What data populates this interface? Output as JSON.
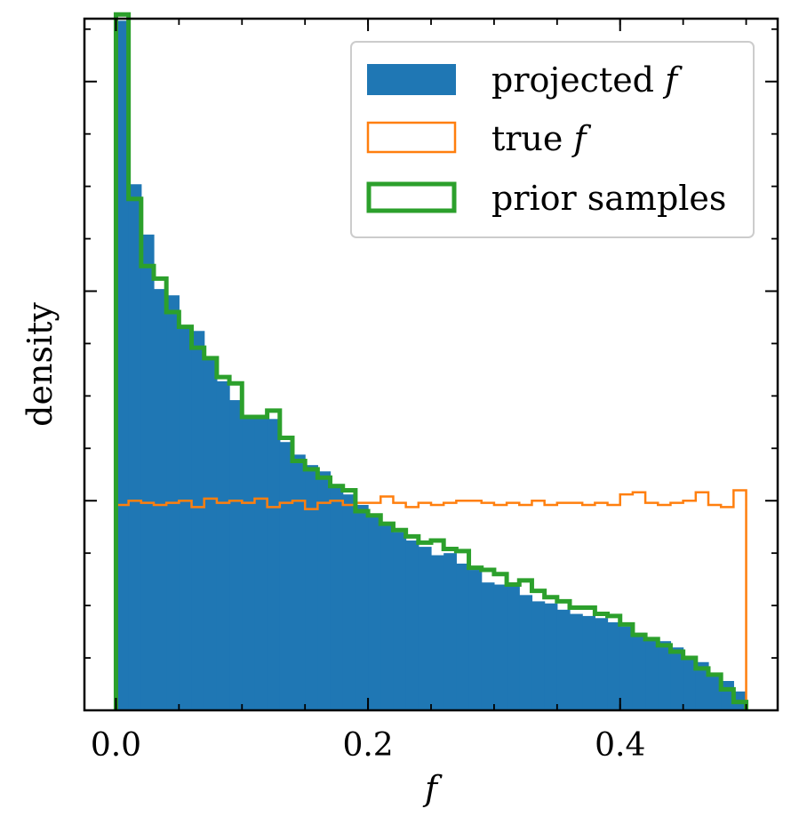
{
  "chart_data": {
    "type": "bar",
    "title": "",
    "xlabel": "f",
    "ylabel": "density",
    "xlim": [
      -0.025,
      0.525
    ],
    "ylim": [
      0,
      3.3
    ],
    "xticks": [
      0.0,
      0.2,
      0.4
    ],
    "xtick_labels": [
      "0.0",
      "0.2",
      "0.4"
    ],
    "bin_edges": [
      0.0,
      0.01,
      0.02,
      0.03,
      0.04,
      0.05,
      0.06,
      0.07,
      0.08,
      0.09,
      0.1,
      0.11,
      0.12,
      0.13,
      0.14,
      0.15,
      0.16,
      0.17,
      0.18,
      0.19,
      0.2,
      0.21,
      0.22,
      0.23,
      0.24,
      0.25,
      0.26,
      0.27,
      0.28,
      0.29,
      0.3,
      0.31,
      0.32,
      0.33,
      0.34,
      0.35,
      0.36,
      0.37,
      0.38,
      0.39,
      0.4,
      0.41,
      0.42,
      0.43,
      0.44,
      0.45,
      0.46,
      0.47,
      0.48,
      0.49,
      0.5
    ],
    "series": [
      {
        "name": "projected f",
        "style": "filled",
        "color": "#1f77b4",
        "values": [
          3.29,
          2.51,
          2.27,
          2.01,
          1.98,
          1.82,
          1.81,
          1.68,
          1.57,
          1.48,
          1.41,
          1.41,
          1.39,
          1.28,
          1.22,
          1.17,
          1.14,
          1.08,
          1.03,
          0.98,
          0.93,
          0.89,
          0.85,
          0.81,
          0.78,
          0.74,
          0.75,
          0.7,
          0.67,
          0.61,
          0.6,
          0.59,
          0.55,
          0.52,
          0.51,
          0.48,
          0.46,
          0.45,
          0.44,
          0.42,
          0.4,
          0.37,
          0.35,
          0.33,
          0.3,
          0.26,
          0.23,
          0.18,
          0.14,
          0.09
        ]
      },
      {
        "name": "true f",
        "style": "step",
        "color": "#ff7f0e",
        "values": [
          0.98,
          1.0,
          0.99,
          0.98,
          0.99,
          1.0,
          0.97,
          1.01,
          0.99,
          1.0,
          0.99,
          1.01,
          0.97,
          0.99,
          1.0,
          0.96,
          0.99,
          1.0,
          0.98,
          0.99,
          0.99,
          1.02,
          0.99,
          0.97,
          0.99,
          0.98,
          0.99,
          1.0,
          1.0,
          0.99,
          0.98,
          0.99,
          0.98,
          1.0,
          0.98,
          0.99,
          0.99,
          0.98,
          0.99,
          0.98,
          1.03,
          1.04,
          0.99,
          0.98,
          0.99,
          1.0,
          1.04,
          0.98,
          0.97,
          1.05
        ]
      },
      {
        "name": "prior samples",
        "style": "step",
        "color": "#2ca02c",
        "values": [
          3.32,
          2.44,
          2.12,
          2.06,
          1.9,
          1.83,
          1.73,
          1.68,
          1.59,
          1.56,
          1.4,
          1.4,
          1.43,
          1.3,
          1.19,
          1.15,
          1.11,
          1.07,
          1.05,
          0.95,
          0.93,
          0.89,
          0.86,
          0.83,
          0.8,
          0.81,
          0.77,
          0.76,
          0.68,
          0.67,
          0.65,
          0.6,
          0.62,
          0.57,
          0.54,
          0.52,
          0.49,
          0.49,
          0.46,
          0.45,
          0.41,
          0.36,
          0.34,
          0.31,
          0.28,
          0.25,
          0.2,
          0.17,
          0.1,
          0.04
        ]
      }
    ],
    "legend_position": "upper-right",
    "legend": [
      {
        "label": "projected ",
        "math": "f"
      },
      {
        "label": "true ",
        "math": "f"
      },
      {
        "label": "prior samples",
        "math": ""
      }
    ]
  }
}
